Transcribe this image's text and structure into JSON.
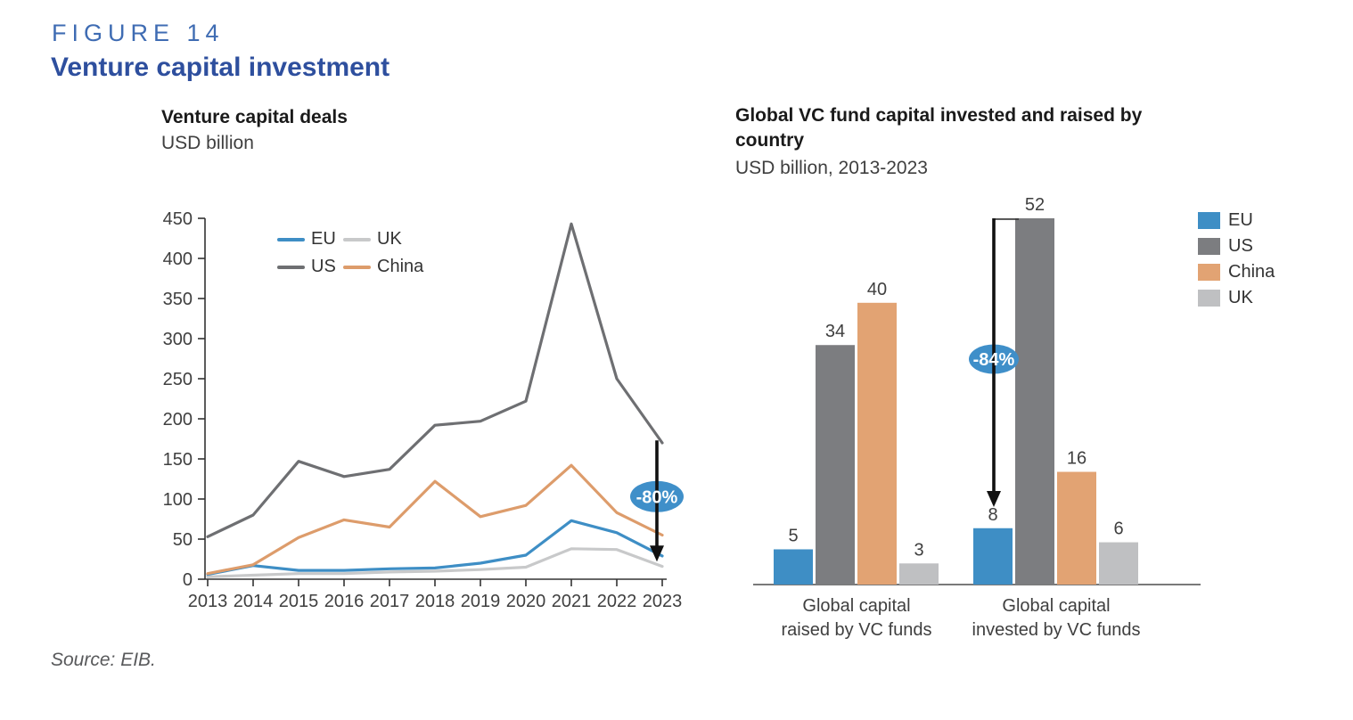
{
  "figure": {
    "label": "FIGURE 14",
    "title": "Venture capital investment"
  },
  "source": "Source: EIB.",
  "accent_colors": {
    "figure_label_blue": "#3f6cb3",
    "figure_title_blue": "#2e4f9e",
    "annotation_blue": "#3f8fc9"
  },
  "chart_data": [
    {
      "type": "line",
      "title": "Venture capital deals",
      "subtitle": "USD billion",
      "xlabel": "",
      "ylabel": "USD billion",
      "x": [
        2013,
        2014,
        2015,
        2016,
        2017,
        2018,
        2019,
        2020,
        2021,
        2022,
        2023
      ],
      "ylim": [
        0,
        450
      ],
      "ytick_step": 50,
      "grid": false,
      "legend_position": "top-inside",
      "legend_layout_order": [
        "EU",
        "UK",
        "US",
        "China"
      ],
      "series": [
        {
          "name": "EU",
          "color": "#3e8ec5",
          "values": [
            6,
            17,
            11,
            11,
            13,
            14,
            20,
            30,
            73,
            58,
            29
          ]
        },
        {
          "name": "US",
          "color": "#6e6f72",
          "values": [
            53,
            80,
            147,
            128,
            137,
            192,
            197,
            222,
            443,
            250,
            170
          ]
        },
        {
          "name": "UK",
          "color": "#c8c9ca",
          "values": [
            3,
            5,
            7,
            7,
            9,
            10,
            12,
            15,
            38,
            37,
            16
          ]
        },
        {
          "name": "China",
          "color": "#dd9c6b",
          "values": [
            7,
            18,
            52,
            74,
            65,
            122,
            78,
            92,
            142,
            83,
            55
          ]
        }
      ],
      "annotation": {
        "label": "-80%",
        "color": "#3f8fc9",
        "at_x": 2023,
        "arrow_from_value": 173,
        "arrow_to_value": 22,
        "ellipse_at_value": 103
      }
    },
    {
      "type": "bar",
      "title": "Global VC fund capital invested and raised by country",
      "title_lines": [
        "Global VC fund capital invested and raised by",
        "country"
      ],
      "subtitle": "USD billion, 2013-2023",
      "categories": [
        "Global capital raised by VC funds",
        "Global capital invested by VC funds"
      ],
      "category_lines": [
        [
          "Global capital",
          "raised by VC funds"
        ],
        [
          "Global capital",
          "invested by VC funds"
        ]
      ],
      "series": [
        {
          "name": "EU",
          "color": "#3e8ec5",
          "values": [
            5,
            8
          ]
        },
        {
          "name": "US",
          "color": "#7c7d80",
          "values": [
            34,
            52
          ]
        },
        {
          "name": "China",
          "color": "#e2a373",
          "values": [
            40,
            16
          ]
        },
        {
          "name": "UK",
          "color": "#bfc0c2",
          "values": [
            3,
            6
          ]
        }
      ],
      "annotation": {
        "label": "-84%",
        "color": "#3f8fc9",
        "at_category_index": 1,
        "arrow_from_value": 52,
        "arrow_to_value": 11,
        "ellipse_at_value": 32
      }
    }
  ]
}
